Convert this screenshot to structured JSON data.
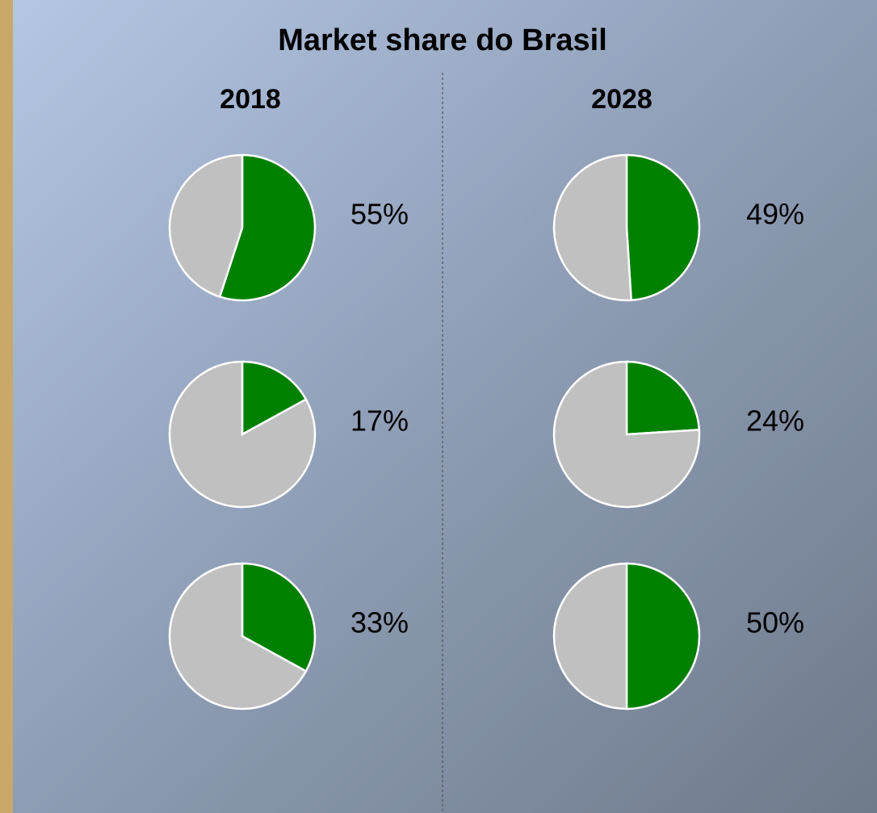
{
  "title": "Market share do Brasil",
  "columns": [
    "2018",
    "2028"
  ],
  "chart_data": [
    {
      "type": "pie",
      "values": [
        55,
        45
      ],
      "value_labels": [
        "55%",
        null
      ],
      "colors": [
        "#008000",
        "#c0c0c0"
      ]
    },
    {
      "type": "pie",
      "values": [
        17,
        83
      ],
      "value_labels": [
        "17%",
        null
      ],
      "colors": [
        "#008000",
        "#c0c0c0"
      ]
    },
    {
      "type": "pie",
      "values": [
        33,
        67
      ],
      "value_labels": [
        "33%",
        null
      ],
      "colors": [
        "#008000",
        "#c0c0c0"
      ]
    },
    {
      "type": "pie",
      "values": [
        49,
        51
      ],
      "value_labels": [
        "49%",
        null
      ],
      "colors": [
        "#008000",
        "#c0c0c0"
      ]
    },
    {
      "type": "pie",
      "values": [
        24,
        76
      ],
      "value_labels": [
        "24%",
        null
      ],
      "colors": [
        "#008000",
        "#c0c0c0"
      ]
    },
    {
      "type": "pie",
      "values": [
        50,
        50
      ],
      "value_labels": [
        "50%",
        null
      ],
      "colors": [
        "#008000",
        "#c0c0c0"
      ]
    }
  ]
}
